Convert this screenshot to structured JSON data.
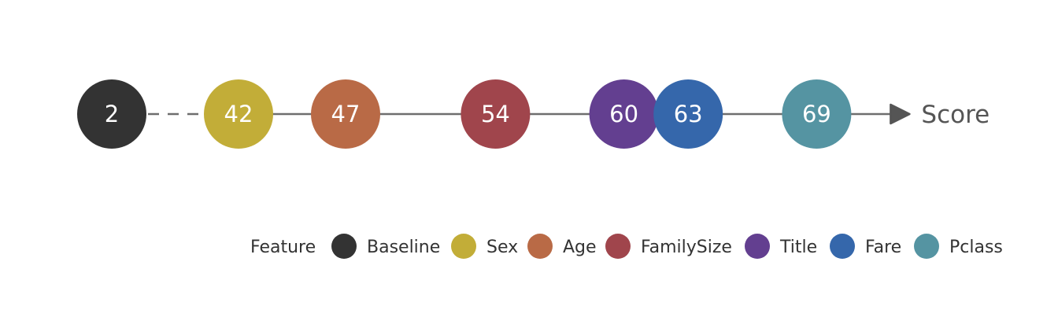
{
  "axis": {
    "label": "Score"
  },
  "legend": {
    "title": "Feature"
  },
  "chart_data": {
    "type": "scatter",
    "xlabel": "Score",
    "points": [
      {
        "feature": "Baseline",
        "value": 2,
        "label": "2",
        "color": "#333333"
      },
      {
        "feature": "Sex",
        "value": 42,
        "label": "42",
        "color": "#c2ad38"
      },
      {
        "feature": "Age",
        "value": 47,
        "label": "47",
        "color": "#b96a46"
      },
      {
        "feature": "FamilySize",
        "value": 54,
        "label": "54",
        "color": "#a0454c"
      },
      {
        "feature": "Title",
        "value": 60,
        "label": "60",
        "color": "#633f90"
      },
      {
        "feature": "Fare",
        "value": 63,
        "label": "63",
        "color": "#3567ab"
      },
      {
        "feature": "Pclass",
        "value": 69,
        "label": "69",
        "color": "#5594a2"
      }
    ],
    "legend_entries": [
      {
        "name": "Baseline",
        "color": "#333333"
      },
      {
        "name": "Sex",
        "color": "#c2ad38"
      },
      {
        "name": "Age",
        "color": "#b96a46"
      },
      {
        "name": "FamilySize",
        "color": "#a0454c"
      },
      {
        "name": "Title",
        "color": "#633f90"
      },
      {
        "name": "Fare",
        "color": "#3567ab"
      },
      {
        "name": "Pclass",
        "color": "#5594a2"
      }
    ]
  }
}
